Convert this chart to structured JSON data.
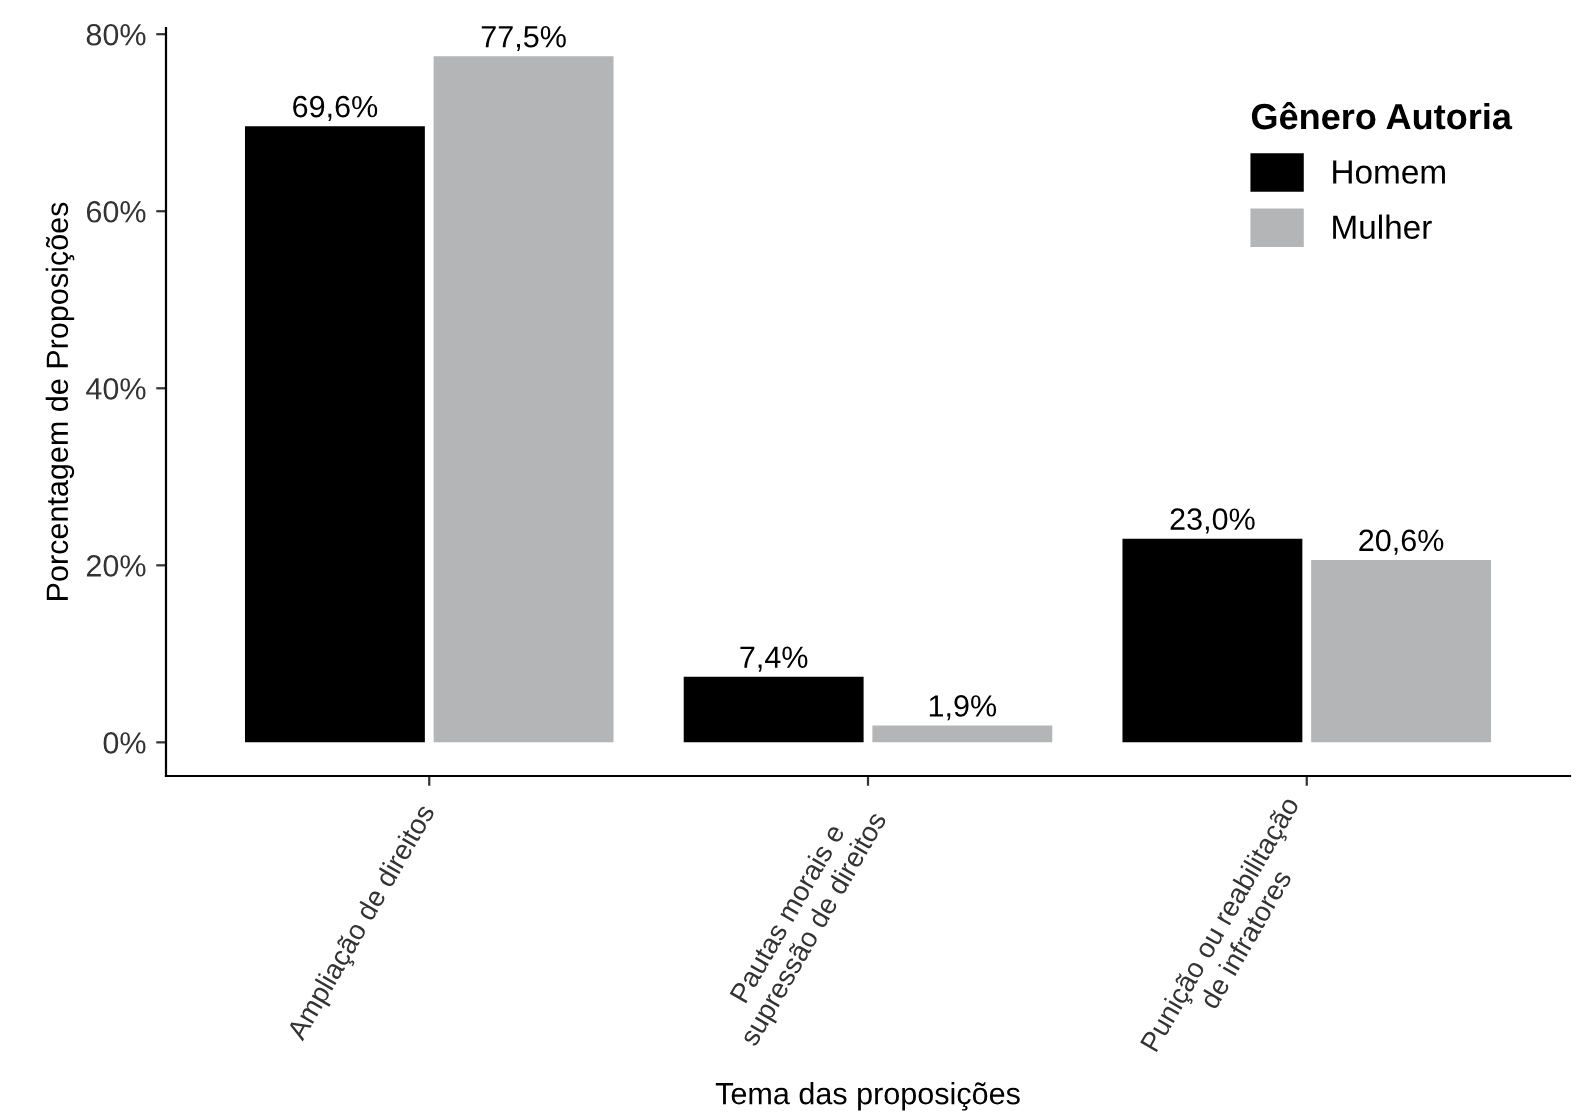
{
  "chart_data": {
    "type": "bar",
    "xlabel": "Tema das proposições",
    "ylabel": "Porcentagem de Proposições",
    "legend_title": "Gênero Autoria",
    "categories": [
      "Ampliação de direitos",
      "Pautas morais e\nsupressão de direitos",
      "Punição ou reabilitação\nde infratores"
    ],
    "series": [
      {
        "name": "Homem",
        "color": "#000000",
        "values": [
          69.6,
          7.4,
          23.0
        ],
        "value_labels": [
          "69,6%",
          "7,4%",
          "23,0%"
        ]
      },
      {
        "name": "Mulher",
        "color": "#b3b5b6",
        "values": [
          77.5,
          1.9,
          20.6
        ],
        "value_labels": [
          "77,5%",
          "1,9%",
          "20,6%"
        ]
      }
    ],
    "ylim": [
      -3.8,
      80.7
    ],
    "yticks": [
      {
        "value": 0,
        "label": "0%"
      },
      {
        "value": 20,
        "label": "20%"
      },
      {
        "value": 40,
        "label": "40%"
      },
      {
        "value": 60,
        "label": "60%"
      },
      {
        "value": 80,
        "label": "80%"
      }
    ],
    "grid": false,
    "legend": "top right"
  }
}
